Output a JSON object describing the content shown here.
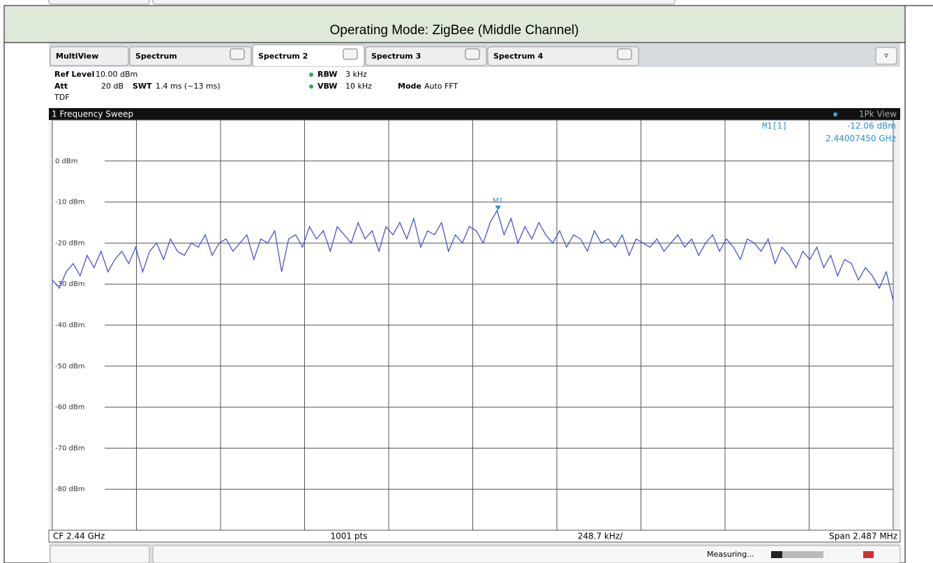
{
  "header": {
    "title": "Operating Mode: ZigBee (Middle Channel)"
  },
  "ui": {
    "tabs": [
      "MultiView",
      "Spectrum",
      "Spectrum 2",
      "Spectrum 3",
      "Spectrum 4"
    ],
    "info": {
      "ref_level_label": "Ref Level",
      "ref_level": "10.00 dBm",
      "att_label": "Att",
      "att": "20 dB",
      "tdf": "TDF",
      "swt_label": "SWT",
      "swt": "1.4 ms (~13 ms)",
      "rbw_label": "RBW",
      "rbw": "3 kHz",
      "vbw_label": "VBW",
      "vbw": "10 kHz",
      "mode_label": "Mode",
      "mode": "Auto FFT"
    },
    "window_title": "1 Frequency Sweep",
    "view": "1Pk View",
    "footer": {
      "center": "CF 2.44 GHz",
      "points": "1001 pts",
      "per_div": "248.7 kHz/",
      "span": "Span 2.487 MHz"
    },
    "status": "Measuring..."
  },
  "chart_data": {
    "type": "line",
    "xlim": [
      2.4387565,
      2.4412435
    ],
    "ylim": [
      -90,
      10
    ],
    "yticks": [
      {
        "value": 0,
        "label": "0 dBm"
      },
      {
        "value": -10,
        "label": "-10 dBm"
      },
      {
        "value": -20,
        "label": "-20 dBm"
      },
      {
        "value": -30,
        "label": "-30 dBm"
      },
      {
        "value": -40,
        "label": "-40 dBm"
      },
      {
        "value": -50,
        "label": "-50 dBm"
      },
      {
        "value": -60,
        "label": "-60 dBm"
      },
      {
        "value": -70,
        "label": "-70 dBm"
      },
      {
        "value": -80,
        "label": "-80 dBm"
      }
    ],
    "grid": true,
    "color": "#3a46d8",
    "values": [
      -29,
      -31,
      -27,
      -25,
      -28,
      -23,
      -26,
      -22,
      -27,
      -24,
      -22,
      -25,
      -21,
      -27,
      -22,
      -20,
      -24,
      -19,
      -22,
      -23,
      -20,
      -21,
      -18,
      -23,
      -20,
      -19,
      -22,
      -20,
      -18,
      -24,
      -19,
      -20,
      -17,
      -27,
      -19,
      -18,
      -21,
      -16,
      -19,
      -17,
      -22,
      -16,
      -18,
      -20,
      -15,
      -19,
      -17,
      -22,
      -16,
      -18,
      -15,
      -19,
      -14,
      -21,
      -17,
      -18,
      -15,
      -22,
      -18,
      -20,
      -16,
      -17,
      -20,
      -15,
      -12.06,
      -18,
      -14,
      -20,
      -16,
      -19,
      -15,
      -18,
      -20,
      -17,
      -21,
      -18,
      -19,
      -22,
      -17,
      -20,
      -19,
      -21,
      -18,
      -23,
      -19,
      -20,
      -21,
      -19,
      -22,
      -20,
      -18,
      -21,
      -19,
      -23,
      -20,
      -18,
      -22,
      -19,
      -21,
      -24,
      -19,
      -20,
      -22,
      -19,
      -25,
      -21,
      -23,
      -26,
      -22,
      -24,
      -21,
      -26,
      -23,
      -28,
      -24,
      -25,
      -29,
      -26,
      -28,
      -31,
      -27,
      -34
    ],
    "marker": {
      "name": "M1",
      "readout": "M1[1]",
      "value": -12.06,
      "value_label": "-12.06 dBm",
      "x": 2.4400745,
      "x_label": "2.44007450 GHz"
    }
  }
}
